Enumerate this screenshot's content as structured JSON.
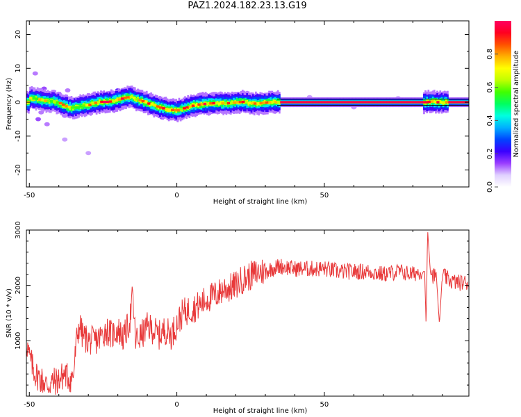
{
  "title": "PAZ1.2024.182.23.13.G19",
  "chart_data": [
    {
      "type": "heatmap",
      "xlabel": "Height of straight line (km)",
      "ylabel": "Frequency (Hz)",
      "xlim": [
        -51,
        99
      ],
      "ylim": [
        -25,
        24
      ],
      "x_ticks": [
        -50,
        0,
        50
      ],
      "y_ticks": [
        -20,
        -10,
        0,
        10,
        20
      ],
      "colorbar": {
        "label": "Normalized spectral amplitude",
        "range": [
          0,
          1
        ],
        "ticks": [
          0.0,
          0.2,
          0.4,
          0.6,
          0.8
        ],
        "colors": [
          "#ffffff",
          "#e0d0ff",
          "#9a3dff",
          "#3a00ff",
          "#0044ff",
          "#00b0ff",
          "#00ffe0",
          "#00ff60",
          "#40ff00",
          "#c0ff00",
          "#ffff00",
          "#ffb000",
          "#ff5000",
          "#ff0020",
          "#ff0060"
        ]
      },
      "ridge": [
        {
          "x": -50,
          "freq": 1.2,
          "amp": 0.8
        },
        {
          "x": -48,
          "freq": 1.0,
          "amp": 0.7
        },
        {
          "x": -45,
          "freq": 0.4,
          "amp": 0.75
        },
        {
          "x": -42,
          "freq": 0.2,
          "amp": 0.7
        },
        {
          "x": -40,
          "freq": -0.3,
          "amp": 0.75
        },
        {
          "x": -38,
          "freq": -1.2,
          "amp": 0.8
        },
        {
          "x": -36,
          "freq": -1.6,
          "amp": 0.8
        },
        {
          "x": -34,
          "freq": -1.5,
          "amp": 0.75
        },
        {
          "x": -32,
          "freq": -1.0,
          "amp": 0.8
        },
        {
          "x": -30,
          "freq": -0.8,
          "amp": 0.85
        },
        {
          "x": -28,
          "freq": -0.2,
          "amp": 0.85
        },
        {
          "x": -26,
          "freq": 0.1,
          "amp": 0.95
        },
        {
          "x": -24,
          "freq": 0.1,
          "amp": 0.95
        },
        {
          "x": -22,
          "freq": 0.3,
          "amp": 0.9
        },
        {
          "x": -20,
          "freq": 0.8,
          "amp": 0.9
        },
        {
          "x": -18,
          "freq": 1.3,
          "amp": 0.85
        },
        {
          "x": -16,
          "freq": 1.6,
          "amp": 0.8
        },
        {
          "x": -14,
          "freq": 0.9,
          "amp": 0.85
        },
        {
          "x": -12,
          "freq": 0.3,
          "amp": 0.9
        },
        {
          "x": -10,
          "freq": -0.4,
          "amp": 0.85
        },
        {
          "x": -8,
          "freq": -0.9,
          "amp": 0.9
        },
        {
          "x": -6,
          "freq": -1.6,
          "amp": 0.95
        },
        {
          "x": -4,
          "freq": -2.0,
          "amp": 0.95
        },
        {
          "x": -2,
          "freq": -2.3,
          "amp": 0.9
        },
        {
          "x": 0,
          "freq": -2.4,
          "amp": 0.85
        },
        {
          "x": 2,
          "freq": -1.8,
          "amp": 0.85
        },
        {
          "x": 4,
          "freq": -1.3,
          "amp": 0.9
        },
        {
          "x": 6,
          "freq": -0.8,
          "amp": 0.95
        },
        {
          "x": 8,
          "freq": -0.6,
          "amp": 0.95
        },
        {
          "x": 10,
          "freq": -0.4,
          "amp": 0.9
        },
        {
          "x": 12,
          "freq": -0.3,
          "amp": 0.85
        },
        {
          "x": 14,
          "freq": -0.4,
          "amp": 0.8
        },
        {
          "x": 16,
          "freq": -0.3,
          "amp": 0.85
        },
        {
          "x": 18,
          "freq": -0.3,
          "amp": 0.8
        },
        {
          "x": 20,
          "freq": 0.0,
          "amp": 0.8
        },
        {
          "x": 22,
          "freq": 0.1,
          "amp": 0.85
        },
        {
          "x": 24,
          "freq": -0.2,
          "amp": 0.8
        },
        {
          "x": 26,
          "freq": -0.4,
          "amp": 0.85
        },
        {
          "x": 28,
          "freq": -0.3,
          "amp": 0.8
        },
        {
          "x": 30,
          "freq": -0.1,
          "amp": 0.85
        },
        {
          "x": 32,
          "freq": 0.0,
          "amp": 0.85
        },
        {
          "x": 35,
          "freq": 0.0,
          "amp": 0.9
        },
        {
          "x": 40,
          "freq": 0.0,
          "amp": 0.95
        },
        {
          "x": 50,
          "freq": 0.0,
          "amp": 0.95
        },
        {
          "x": 60,
          "freq": 0.0,
          "amp": 0.95
        },
        {
          "x": 70,
          "freq": 0.0,
          "amp": 0.95
        },
        {
          "x": 80,
          "freq": 0.0,
          "amp": 0.95
        },
        {
          "x": 84,
          "freq": 0.0,
          "amp": 0.9
        },
        {
          "x": 86,
          "freq": 0.2,
          "amp": 0.8
        },
        {
          "x": 88,
          "freq": 0.0,
          "amp": 0.9
        },
        {
          "x": 90,
          "freq": 0.0,
          "amp": 0.85
        },
        {
          "x": 95,
          "freq": 0.0,
          "amp": 0.95
        },
        {
          "x": 99,
          "freq": 0.0,
          "amp": 0.95
        }
      ],
      "speckles": [
        {
          "x": -48,
          "freq": 8.5,
          "amp": 0.12
        },
        {
          "x": -45,
          "freq": 4.0,
          "amp": 0.15
        },
        {
          "x": -44,
          "freq": 2.5,
          "amp": 0.2
        },
        {
          "x": -46,
          "freq": -3.0,
          "amp": 0.12
        },
        {
          "x": -47,
          "freq": -5.0,
          "amp": 0.15
        },
        {
          "x": -44,
          "freq": -6.5,
          "amp": 0.12
        },
        {
          "x": -40,
          "freq": 2.5,
          "amp": 0.15
        },
        {
          "x": -37,
          "freq": 3.5,
          "amp": 0.12
        },
        {
          "x": -38,
          "freq": -4.0,
          "amp": 0.12
        },
        {
          "x": -38,
          "freq": -11.0,
          "amp": 0.1
        },
        {
          "x": -30,
          "freq": -15.0,
          "amp": 0.1
        },
        {
          "x": -20,
          "freq": 3.5,
          "amp": 0.2
        },
        {
          "x": -16,
          "freq": 3.0,
          "amp": 0.18
        },
        {
          "x": -12,
          "freq": 2.5,
          "amp": 0.15
        },
        {
          "x": -5,
          "freq": -4.5,
          "amp": 0.15
        },
        {
          "x": 0,
          "freq": -5.0,
          "amp": 0.12
        },
        {
          "x": 5,
          "freq": -3.5,
          "amp": 0.12
        },
        {
          "x": 20,
          "freq": 2.0,
          "amp": 0.1
        },
        {
          "x": 30,
          "freq": 1.8,
          "amp": 0.1
        },
        {
          "x": 45,
          "freq": 1.5,
          "amp": 0.1
        },
        {
          "x": 60,
          "freq": -1.5,
          "amp": 0.1
        },
        {
          "x": 75,
          "freq": 1.2,
          "amp": 0.1
        },
        {
          "x": 86,
          "freq": 2.5,
          "amp": 0.2
        },
        {
          "x": 86,
          "freq": -2.0,
          "amp": 0.2
        },
        {
          "x": 90,
          "freq": 2.0,
          "amp": 0.15
        }
      ]
    },
    {
      "type": "line",
      "xlabel": "Height of straight line (km)",
      "ylabel": "SNR (10 * v/v)",
      "xlim": [
        -51,
        99
      ],
      "ylim": [
        0,
        3000
      ],
      "x_ticks": [
        -50,
        0,
        50
      ],
      "y_ticks": [
        1000,
        2000,
        3000
      ],
      "series": [
        {
          "color": "#e8393a",
          "x": [
            -51,
            -50,
            -48,
            -46,
            -44,
            -42,
            -40,
            -38,
            -36,
            -35,
            -34,
            -33,
            -32,
            -30,
            -28,
            -26,
            -24,
            -22,
            -20,
            -18,
            -16,
            -15,
            -14,
            -12,
            -10,
            -8,
            -6,
            -4,
            -2,
            0,
            2,
            4,
            6,
            8,
            10,
            12,
            14,
            16,
            18,
            20,
            22,
            24,
            26,
            28,
            30,
            32,
            35,
            40,
            45,
            50,
            55,
            60,
            65,
            70,
            75,
            80,
            82,
            84,
            84.5,
            85,
            86,
            88,
            89,
            90,
            92,
            95,
            99
          ],
          "y": [
            1000,
            700,
            400,
            300,
            200,
            250,
            300,
            400,
            300,
            400,
            1000,
            1300,
            1100,
            1000,
            1000,
            1050,
            1200,
            1100,
            1200,
            1050,
            1350,
            1800,
            1000,
            1100,
            1250,
            1200,
            1100,
            1200,
            1100,
            1300,
            1500,
            1550,
            1600,
            1650,
            1750,
            1800,
            1850,
            1950,
            1950,
            2000,
            2100,
            2150,
            2200,
            2250,
            2250,
            2300,
            2350,
            2300,
            2300,
            2300,
            2250,
            2250,
            2250,
            2200,
            2250,
            2200,
            2250,
            2250,
            1250,
            3000,
            2200,
            2150,
            1300,
            2200,
            2100,
            2050,
            2050
          ],
          "noise": 150
        }
      ]
    }
  ]
}
